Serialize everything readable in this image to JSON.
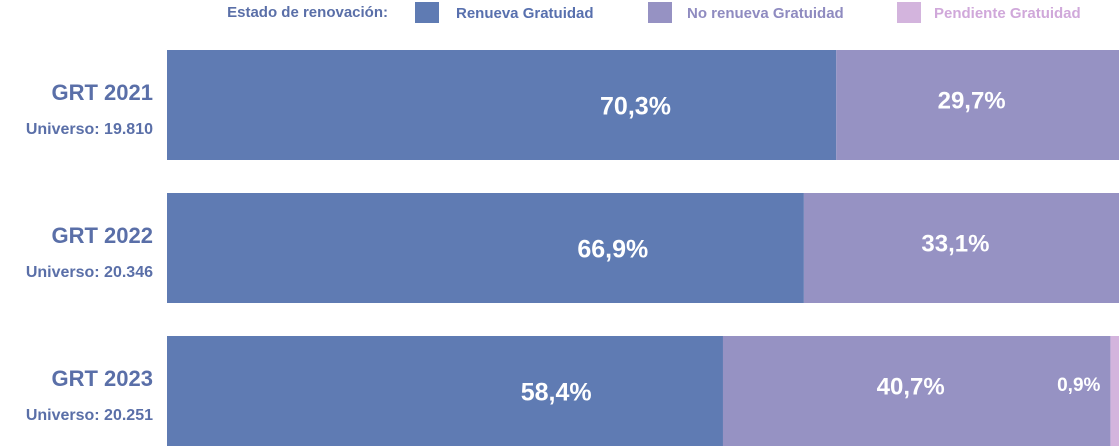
{
  "chart_data": {
    "type": "stacked_bar_horizontal",
    "legend_title": "Estado de renovación:",
    "categories": [
      "GRT 2021",
      "GRT 2022",
      "GRT 2023"
    ],
    "category_sublabels": [
      "Universo: 19.810",
      "Universo: 20.346",
      "Universo: 20.251"
    ],
    "xlim": [
      0,
      100
    ],
    "legend_position": "top",
    "series": [
      {
        "name": "Renueva Gratuidad",
        "color": "#5f7bb3",
        "text_color": "#5870ae",
        "values": [
          70.3,
          66.9,
          58.4
        ],
        "value_labels": [
          "70,3%",
          "66,9%",
          "58,4%"
        ]
      },
      {
        "name": "No renueva Gratuidad",
        "color": "#9692c3",
        "text_color": "#8f8bc0",
        "values": [
          29.7,
          33.1,
          40.7
        ],
        "value_labels": [
          "29,7%",
          "33,1%",
          "40,7%"
        ]
      },
      {
        "name": "Pendiente Gratuidad",
        "color": "#d3b4dd",
        "text_color": "#d0a8da",
        "values": [
          null,
          null,
          0.9
        ],
        "value_labels": [
          null,
          null,
          "0,9%"
        ]
      }
    ]
  }
}
